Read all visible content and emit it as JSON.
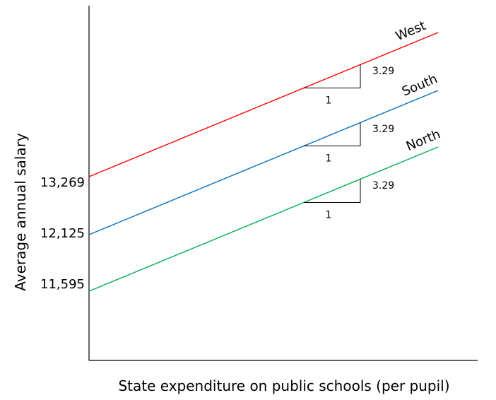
{
  "chart_data": {
    "type": "line",
    "xlabel": "State expenditure on public schools (per pupil)",
    "ylabel": "Average annual salary",
    "y_ticks": [
      "13,269",
      "12,125",
      "11,595"
    ],
    "slope": 3.29,
    "slope_run_label": "1",
    "slope_rise_label": "3.29",
    "series": [
      {
        "name": "West",
        "intercept": 13269,
        "color": "#ff0000"
      },
      {
        "name": "South",
        "intercept": 12125,
        "color": "#0070c0"
      },
      {
        "name": "North",
        "intercept": 11595,
        "color": "#00b050"
      }
    ],
    "grid": false
  }
}
